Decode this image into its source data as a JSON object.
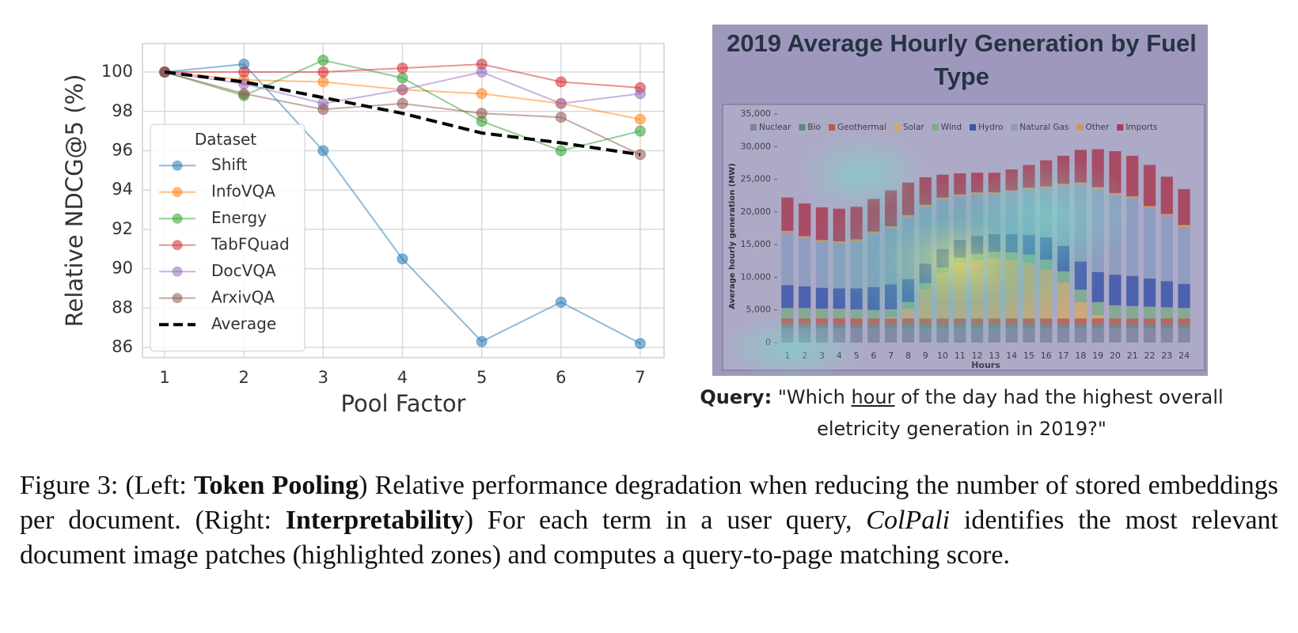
{
  "chart_data": [
    {
      "type": "line",
      "x": [
        1,
        2,
        3,
        4,
        5,
        6,
        7
      ],
      "xlabel": "Pool Factor",
      "ylabel": "Relative NDCG@5 (%)",
      "xlim": [
        0.72,
        7.3
      ],
      "xticks": [
        1,
        2,
        3,
        4,
        5,
        6,
        7
      ],
      "ylim": [
        85.48,
        101.45
      ],
      "yticks": [
        86,
        88,
        90,
        92,
        94,
        96,
        98,
        100
      ],
      "grid": true,
      "legend": "center left",
      "legend_title": "Dataset",
      "series": [
        {
          "name": "Shift",
          "color": "#1f77b4",
          "marker": "o",
          "linestyle": "solid",
          "values": [
            100,
            100.4,
            96,
            90.5,
            86.3,
            88.3,
            86.2
          ]
        },
        {
          "name": "InfoVQA",
          "color": "#ff7f0e",
          "marker": "o",
          "linestyle": "solid",
          "values": [
            100,
            99.6,
            99.5,
            99.1,
            98.9,
            98.4,
            97.6
          ]
        },
        {
          "name": "Energy",
          "color": "#2ca02c",
          "marker": "o",
          "linestyle": "solid",
          "values": [
            100,
            98.8,
            100.6,
            99.7,
            97.5,
            96,
            97
          ]
        },
        {
          "name": "TabFQuad",
          "color": "#d62728",
          "marker": "o",
          "linestyle": "solid",
          "values": [
            100,
            100,
            100,
            100.2,
            100.4,
            99.5,
            99.2
          ]
        },
        {
          "name": "DocVQA",
          "color": "#9467bd",
          "marker": "o",
          "linestyle": "solid",
          "values": [
            100,
            99.4,
            98.4,
            99.1,
            100,
            98.4,
            98.9
          ]
        },
        {
          "name": "ArxivQA",
          "color": "#8c564b",
          "marker": "o",
          "linestyle": "solid",
          "values": [
            100,
            98.9,
            98.1,
            98.4,
            97.9,
            97.7,
            95.8
          ]
        },
        {
          "name": "Average",
          "color": "#000000",
          "marker": "none",
          "linestyle": "dashed",
          "values": [
            100,
            99.5,
            98.7,
            97.9,
            96.9,
            96.4,
            95.8
          ]
        }
      ]
    },
    {
      "type": "bar",
      "stacked": true,
      "title": "2019 Average Hourly Generation by Fuel Type",
      "xlabel": "Hours",
      "ylabel": "Average hourly generation (MW)",
      "categories": [
        1,
        2,
        3,
        4,
        5,
        6,
        7,
        8,
        9,
        10,
        11,
        12,
        13,
        14,
        15,
        16,
        17,
        18,
        19,
        20,
        21,
        22,
        23,
        24
      ],
      "ylim": [
        0,
        35000
      ],
      "yticks": [
        0,
        {
          "value": 5000,
          "label": "5,000"
        },
        {
          "value": 10000,
          "label": "10,000"
        },
        {
          "value": 15000,
          "label": "15,000"
        },
        {
          "value": 20000,
          "label": "20,000"
        },
        {
          "value": 25000,
          "label": "25,000"
        },
        {
          "value": 30000,
          "label": "30,000"
        },
        {
          "value": 35000,
          "label": "35,000"
        }
      ],
      "series": [
        {
          "name": "Nuclear",
          "color": "#7d879c",
          "values": [
            2200,
            2200,
            2200,
            2200,
            2200,
            2200,
            2200,
            2200,
            2200,
            2200,
            2200,
            2200,
            2200,
            2200,
            2200,
            2200,
            2200,
            2200,
            2200,
            2200,
            2200,
            2200,
            2200,
            2200
          ]
        },
        {
          "name": "Bio",
          "color": "#5f8a72",
          "values": [
            600,
            600,
            600,
            600,
            600,
            600,
            600,
            600,
            600,
            600,
            600,
            600,
            600,
            600,
            600,
            600,
            600,
            600,
            600,
            600,
            600,
            600,
            600,
            600
          ]
        },
        {
          "name": "Geothermal",
          "color": "#c8553d",
          "values": [
            900,
            900,
            900,
            900,
            900,
            900,
            900,
            900,
            900,
            900,
            900,
            900,
            900,
            900,
            900,
            900,
            900,
            900,
            900,
            900,
            900,
            900,
            900,
            900
          ]
        },
        {
          "name": "Solar",
          "color": "#e6b45a",
          "values": [
            0,
            0,
            0,
            0,
            0,
            0,
            200,
            1500,
            4500,
            7000,
            8500,
            9000,
            9200,
            9000,
            8500,
            7500,
            5500,
            2500,
            500,
            0,
            0,
            0,
            0,
            0
          ]
        },
        {
          "name": "Wind",
          "color": "#7fb77e",
          "values": [
            1600,
            1600,
            1500,
            1500,
            1400,
            1300,
            1200,
            1000,
            900,
            800,
            800,
            900,
            1000,
            1100,
            1300,
            1500,
            1700,
            1900,
            2000,
            2000,
            1900,
            1800,
            1700,
            1600
          ]
        },
        {
          "name": "Hydro",
          "color": "#2f4fa8",
          "values": [
            3500,
            3300,
            3200,
            3100,
            3200,
            3500,
            3800,
            3500,
            3000,
            2800,
            2700,
            2700,
            2700,
            2800,
            3000,
            3400,
            3900,
            4300,
            4600,
            4700,
            4600,
            4300,
            4000,
            3700
          ]
        },
        {
          "name": "Natural Gas",
          "color": "#8ea2c2",
          "values": [
            8000,
            7400,
            7000,
            6900,
            7200,
            8200,
            8600,
            9500,
            8700,
            7600,
            6700,
            6400,
            6100,
            6400,
            6900,
            7500,
            9200,
            11800,
            12700,
            12200,
            11900,
            10800,
            10000,
            8700
          ]
        },
        {
          "name": "Other",
          "color": "#e0a040",
          "values": [
            300,
            300,
            300,
            300,
            300,
            300,
            300,
            300,
            300,
            300,
            300,
            300,
            300,
            300,
            300,
            300,
            300,
            300,
            300,
            300,
            300,
            300,
            300,
            300
          ]
        },
        {
          "name": "Imports",
          "color": "#b03040",
          "values": [
            5100,
            5000,
            5000,
            5000,
            5000,
            5000,
            5500,
            5000,
            4200,
            3500,
            3200,
            3000,
            3000,
            3200,
            3500,
            4000,
            4300,
            5000,
            5800,
            6400,
            6200,
            6300,
            5700,
            5500
          ]
        }
      ]
    }
  ],
  "query": {
    "label": "Query:",
    "before": "\"Which ",
    "highlight": "hour",
    "after": " of the day had the highest overall eletricity generation in 2019?\""
  },
  "caption": {
    "prefix": "Figure 3: (Left: ",
    "bold1": "Token Pooling",
    "text1": ") Relative performance degradation when reducing the number of stored embeddings per document. (Right: ",
    "bold2": "Interpretability",
    "text2": ") For each term in a user query, ",
    "italic": "ColPali",
    "text3": " identifies the most relevant document image patches (highlighted zones) and computes a query-to-page matching score."
  }
}
